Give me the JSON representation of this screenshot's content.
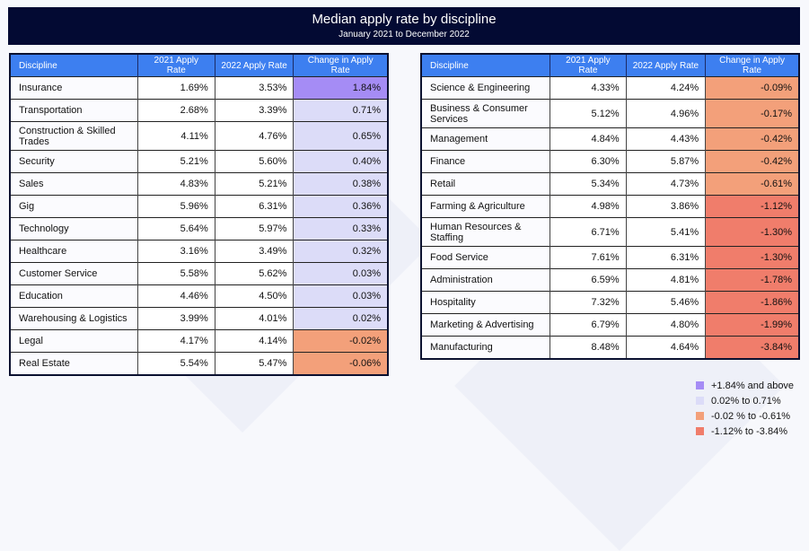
{
  "chart_data": {
    "type": "table",
    "title": "Median apply rate by discipline",
    "subtitle": "January 2021 to December 2022",
    "columns": [
      "Discipline",
      "2021 Apply Rate",
      "2022 Apply Rate",
      "Change in Apply Rate"
    ],
    "tables": [
      {
        "rows": [
          [
            "Insurance",
            "1.69%",
            "3.53%",
            "1.84%",
            "top"
          ],
          [
            "Transportation",
            "2.68%",
            "3.39%",
            "0.71%",
            "pos"
          ],
          [
            "Construction & Skilled Trades",
            "4.11%",
            "4.76%",
            "0.65%",
            "pos"
          ],
          [
            "Security",
            "5.21%",
            "5.60%",
            "0.40%",
            "pos"
          ],
          [
            "Sales",
            "4.83%",
            "5.21%",
            "0.38%",
            "pos"
          ],
          [
            "Gig",
            "5.96%",
            "6.31%",
            "0.36%",
            "pos"
          ],
          [
            "Technology",
            "5.64%",
            "5.97%",
            "0.33%",
            "pos"
          ],
          [
            "Healthcare",
            "3.16%",
            "3.49%",
            "0.32%",
            "pos"
          ],
          [
            "Customer Service",
            "5.58%",
            "5.62%",
            "0.03%",
            "pos"
          ],
          [
            "Education",
            "4.46%",
            "4.50%",
            "0.03%",
            "pos"
          ],
          [
            "Warehousing & Logistics",
            "3.99%",
            "4.01%",
            "0.02%",
            "pos"
          ],
          [
            "Legal",
            "4.17%",
            "4.14%",
            "-0.02%",
            "neg"
          ],
          [
            "Real Estate",
            "5.54%",
            "5.47%",
            "-0.06%",
            "neg"
          ]
        ]
      },
      {
        "rows": [
          [
            "Science & Engineering",
            "4.33%",
            "4.24%",
            "-0.09%",
            "neg"
          ],
          [
            "Business & Consumer Services",
            "5.12%",
            "4.96%",
            "-0.17%",
            "neg"
          ],
          [
            "Management",
            "4.84%",
            "4.43%",
            "-0.42%",
            "neg"
          ],
          [
            "Finance",
            "6.30%",
            "5.87%",
            "-0.42%",
            "neg"
          ],
          [
            "Retail",
            "5.34%",
            "4.73%",
            "-0.61%",
            "neg"
          ],
          [
            "Farming & Agriculture",
            "4.98%",
            "3.86%",
            "-1.12%",
            "low"
          ],
          [
            "Human Resources & Staffing",
            "6.71%",
            "5.41%",
            "-1.30%",
            "low"
          ],
          [
            "Food Service",
            "7.61%",
            "6.31%",
            "-1.30%",
            "low"
          ],
          [
            "Administration",
            "6.59%",
            "4.81%",
            "-1.78%",
            "low"
          ],
          [
            "Hospitality",
            "7.32%",
            "5.46%",
            "-1.86%",
            "low"
          ],
          [
            "Marketing & Advertising",
            "6.79%",
            "4.80%",
            "-1.99%",
            "low"
          ],
          [
            "Manufacturing",
            "8.48%",
            "4.64%",
            "-3.84%",
            "low"
          ]
        ]
      }
    ],
    "legend": [
      {
        "key": "top",
        "label": "+1.84% and above",
        "color": "#a58cf5"
      },
      {
        "key": "pos",
        "label": "0.02% to 0.71%",
        "color": "#dcdcf8"
      },
      {
        "key": "neg",
        "label": "-0.02 % to -0.61%",
        "color": "#f3a07a"
      },
      {
        "key": "low",
        "label": "-1.12% to -3.84%",
        "color": "#f07d6b"
      }
    ],
    "header_color": "#3d7ff0",
    "title_bar_color": "#030a33"
  }
}
